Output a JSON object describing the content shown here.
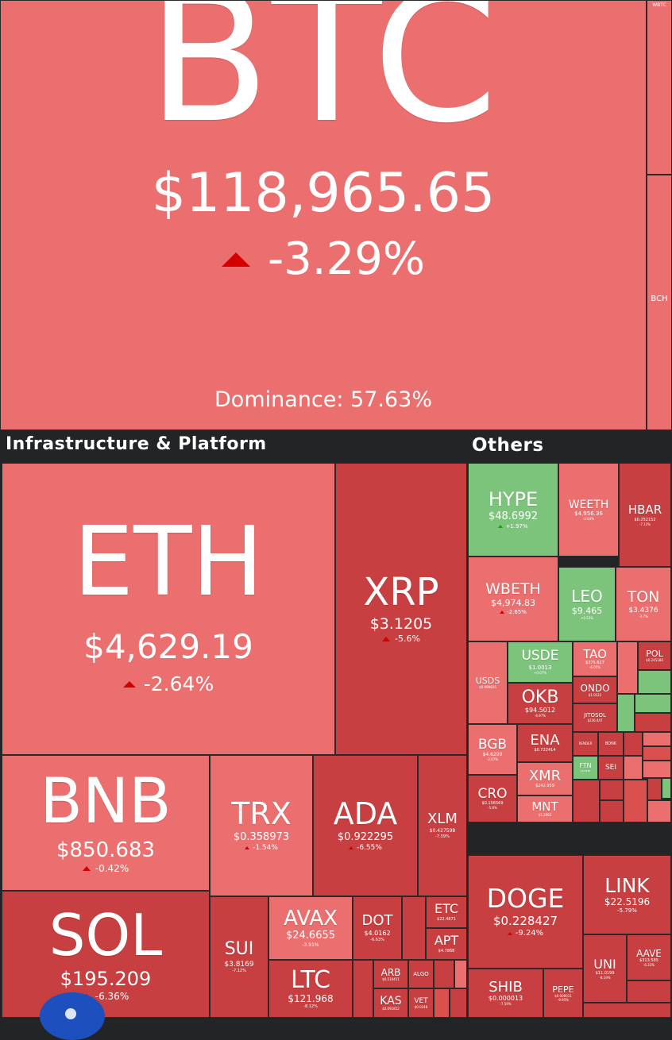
{
  "btc": {
    "symbol": "BTC",
    "price": "$118,965.65",
    "change": "-3.29%",
    "dominance": "Dominance: 57.63%"
  },
  "right_strip": {
    "top_label": "WBTC",
    "bch": "BCH"
  },
  "sections": {
    "infra": "Infrastructure & Platform",
    "others": "Others"
  },
  "coins": {
    "eth": {
      "symbol": "ETH",
      "price": "$4,629.19",
      "change": "-2.64%"
    },
    "xrp": {
      "symbol": "XRP",
      "price": "$3.1205",
      "change": "-5.6%"
    },
    "bnb": {
      "symbol": "BNB",
      "price": "$850.683",
      "change": "-0.42%"
    },
    "trx": {
      "symbol": "TRX",
      "price": "$0.358973",
      "change": "-1.54%"
    },
    "ada": {
      "symbol": "ADA",
      "price": "$0.922295",
      "change": "-6.55%"
    },
    "xlm": {
      "symbol": "XLM",
      "price": "$0.427598",
      "change": "-7.59%"
    },
    "sol": {
      "symbol": "SOL",
      "price": "$195.209",
      "change": "-6.36%"
    },
    "sui": {
      "symbol": "SUI",
      "price": "$3.8169",
      "change": "-7.12%"
    },
    "avax": {
      "symbol": "AVAX",
      "price": "$24.6655",
      "change": "-3.91%"
    },
    "dot": {
      "symbol": "DOT",
      "price": "$4.0162",
      "change": "-6.63%"
    },
    "etc": {
      "symbol": "ETC",
      "price": "$22.4871"
    },
    "apt": {
      "symbol": "APT",
      "price": "$4.7868"
    },
    "ltc": {
      "symbol": "LTC",
      "price": "$121.968",
      "change": "-8.12%"
    },
    "arb": {
      "symbol": "ARB",
      "price": "$0.510451"
    },
    "algo": {
      "symbol": "ALGO"
    },
    "kas": {
      "symbol": "KAS",
      "price": "$0.091852"
    },
    "vet": {
      "symbol": "VET",
      "price": "$0.0248"
    },
    "hype": {
      "symbol": "HYPE",
      "price": "$48.6992",
      "change": "+1.97%"
    },
    "weeth": {
      "symbol": "WEETH",
      "price": "$4,956.36",
      "change": "-2.64%"
    },
    "hbar": {
      "symbol": "HBAR",
      "price": "$0.252152",
      "change": "-7.13%"
    },
    "wbeth": {
      "symbol": "WBETH",
      "price": "$4,974.83",
      "change": "-2.65%"
    },
    "leo": {
      "symbol": "LEO",
      "price": "$9.465",
      "change": "+0.53%"
    },
    "ton": {
      "symbol": "TON",
      "price": "$3.4376",
      "change": "-3.7%"
    },
    "usde": {
      "symbol": "USDE",
      "price": "$1.0013",
      "change": "+0.07%"
    },
    "tao": {
      "symbol": "TAO",
      "price": "$375.627",
      "change": "-6.05%"
    },
    "pol": {
      "symbol": "POL",
      "price": "$0.245184"
    },
    "usds": {
      "symbol": "USDS",
      "price": "$0.999825"
    },
    "okb": {
      "symbol": "OKB",
      "price": "$94.5012",
      "change": "-6.97%"
    },
    "ondo": {
      "symbol": "ONDO",
      "price": "$1.0122"
    },
    "jitosol": {
      "symbol": "JITOSOL",
      "price": "$236.447"
    },
    "bgb": {
      "symbol": "BGB",
      "price": "$4.6299",
      "change": "-2.07%"
    },
    "ena": {
      "symbol": "ENA",
      "price": "$0.722414"
    },
    "xmr": {
      "symbol": "XMR",
      "price": "$242.959"
    },
    "ftn": {
      "symbol": "FTN",
      "price": "$4.0135"
    },
    "sei": {
      "symbol": "SEI"
    },
    "bonk": {
      "symbol": "BONK"
    },
    "render": {
      "symbol": "RENDER"
    },
    "cro": {
      "symbol": "CRO",
      "price": "$0.156569",
      "change": "-5.6%"
    },
    "mnt": {
      "symbol": "MNT",
      "price": "$1.2092"
    },
    "doge": {
      "symbol": "DOGE",
      "price": "$0.228427",
      "change": "-9.24%"
    },
    "link": {
      "symbol": "LINK",
      "price": "$22.5196",
      "change": "-5.79%"
    },
    "uni": {
      "symbol": "UNI",
      "price": "$11.0199",
      "change": "-8.19%"
    },
    "aave": {
      "symbol": "AAVE",
      "price": "$313.585",
      "change": "-6.33%"
    },
    "shib": {
      "symbol": "SHIB",
      "price": "$0.000013",
      "change": "-7.59%"
    },
    "pepe": {
      "symbol": "PEPE",
      "price": "$0.000011",
      "change": "-9.95%"
    }
  },
  "colors": {
    "light_red": "#ea6f6e",
    "medium_red": "#d9504f",
    "dark_red": "#c73f40",
    "green": "#7cc47c",
    "divider": "#222426"
  }
}
